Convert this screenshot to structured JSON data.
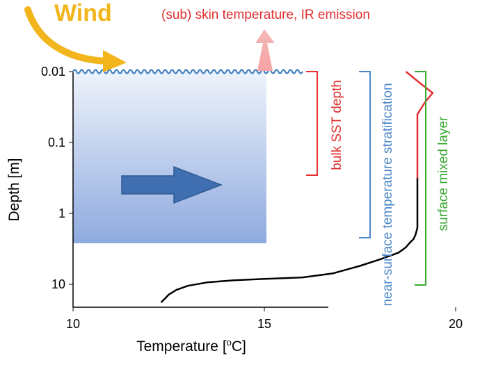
{
  "labels": {
    "wind": "Wind",
    "skin": "(sub) skin temperature, IR emission",
    "bulk_sst": "bulk  SST depth",
    "near_surface": "near-surface temperature stratification",
    "mixed_layer": "surface mixed layer"
  },
  "axes": {
    "x_title_main": "Temperature [",
    "x_title_sup": "o",
    "x_title_end": "C]",
    "y_title": "Depth [m]",
    "x_ticks": [
      "10",
      "15",
      "20"
    ],
    "y_ticks": [
      "0.01",
      "0.1",
      "1",
      "10"
    ]
  },
  "colors": {
    "wind": "#f2b51c",
    "skin": "#e03030",
    "near_surface": "#4a86c8",
    "mixed_layer": "#3aaa35",
    "water_top": "#eef3fb",
    "water_bottom": "#8eaadf",
    "current_arrow": "#3f6fb0",
    "wave": "#3f7fc0",
    "profile": "#000000"
  },
  "chart_data": {
    "type": "line",
    "xlabel": "Temperature [oC]",
    "ylabel": "Depth [m]",
    "xlim": [
      10,
      22
    ],
    "ylim": [
      0.01,
      20
    ],
    "y_scale": "log",
    "y_inverted": true,
    "x_ticks": [
      10,
      15,
      20
    ],
    "y_ticks": [
      0.01,
      0.1,
      1,
      10
    ],
    "series": [
      {
        "x": [
          19.0,
          19.0,
          19.0,
          19.0,
          19.0,
          18.95,
          18.9,
          18.8,
          18.7,
          18.5,
          18.0,
          17.5,
          16.8,
          16.0,
          15.0,
          14.2,
          13.5,
          13.0,
          12.7,
          12.5,
          12.4,
          12.3
        ],
        "y": [
          0.32,
          0.5,
          0.8,
          1.2,
          1.6,
          2.0,
          2.3,
          2.6,
          3.0,
          3.6,
          4.5,
          5.5,
          7.0,
          8.0,
          8.4,
          8.8,
          9.4,
          10.5,
          12.0,
          14.0,
          16.0,
          18.0
        ]
      },
      {
        "x": [
          18.7,
          19.1,
          19.4,
          19.2,
          19.0,
          19.0,
          19.0,
          19.0
        ],
        "y": [
          0.01,
          0.015,
          0.02,
          0.027,
          0.04,
          0.06,
          0.1,
          0.32
        ]
      }
    ]
  }
}
